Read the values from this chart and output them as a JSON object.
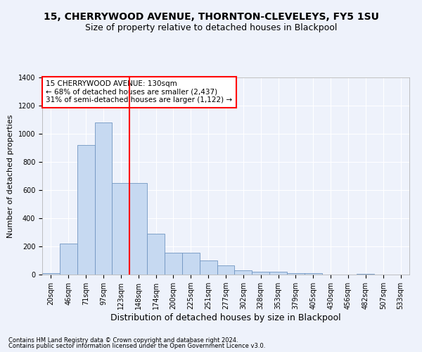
{
  "title1": "15, CHERRYWOOD AVENUE, THORNTON-CLEVELEYS, FY5 1SU",
  "title2": "Size of property relative to detached houses in Blackpool",
  "xlabel": "Distribution of detached houses by size in Blackpool",
  "ylabel": "Number of detached properties",
  "categories": [
    "20sqm",
    "46sqm",
    "71sqm",
    "97sqm",
    "123sqm",
    "148sqm",
    "174sqm",
    "200sqm",
    "225sqm",
    "251sqm",
    "277sqm",
    "302sqm",
    "328sqm",
    "353sqm",
    "379sqm",
    "405sqm",
    "430sqm",
    "456sqm",
    "482sqm",
    "507sqm",
    "533sqm"
  ],
  "values": [
    10,
    220,
    920,
    1080,
    650,
    650,
    290,
    155,
    155,
    100,
    65,
    30,
    20,
    20,
    10,
    10,
    0,
    0,
    5,
    0,
    0
  ],
  "bar_color": "#c6d9f1",
  "bar_edge_color": "#7095c1",
  "red_line_x": 4.5,
  "annotation_text": "15 CHERRYWOOD AVENUE: 130sqm\n← 68% of detached houses are smaller (2,437)\n31% of semi-detached houses are larger (1,122) →",
  "ylim": [
    0,
    1400
  ],
  "yticks": [
    0,
    200,
    400,
    600,
    800,
    1000,
    1200,
    1400
  ],
  "footer1": "Contains HM Land Registry data © Crown copyright and database right 2024.",
  "footer2": "Contains public sector information licensed under the Open Government Licence v3.0.",
  "background_color": "#eef2fb",
  "grid_color": "#ffffff",
  "title_fontsize": 10,
  "subtitle_fontsize": 9,
  "ylabel_fontsize": 8,
  "xlabel_fontsize": 9,
  "tick_fontsize": 7,
  "footer_fontsize": 6
}
